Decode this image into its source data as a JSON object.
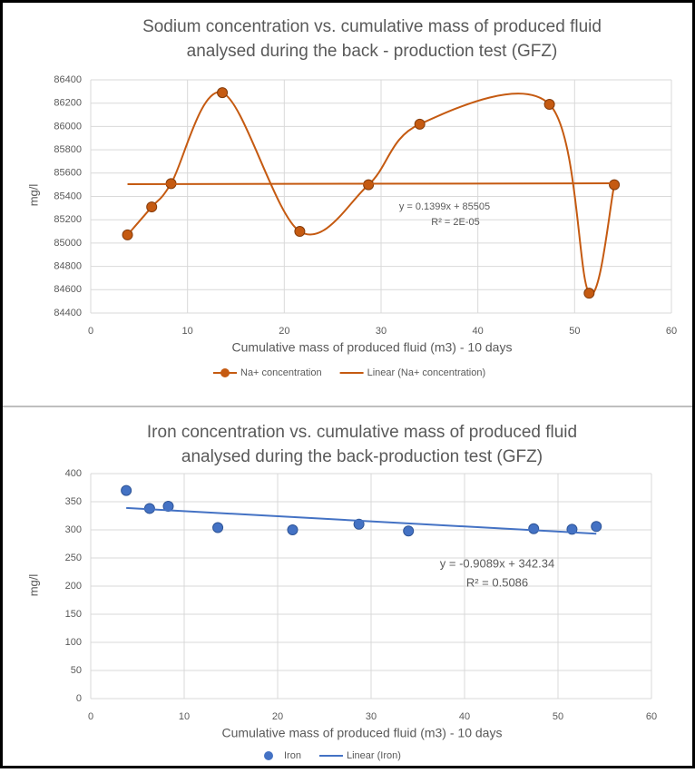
{
  "chart_data": [
    {
      "type": "line",
      "title": [
        "Sodium concentration vs. cumulative mass of produced fluid",
        "analysed during the back - production test (GFZ)"
      ],
      "x_label": "Cumulative mass of produced fluid (m3) - 10 days",
      "y_label": "mg/l",
      "xlim": [
        0,
        60
      ],
      "xticks": [
        0,
        10,
        20,
        30,
        40,
        50,
        60
      ],
      "ylim": [
        84400,
        86400
      ],
      "yticks": [
        84400,
        84600,
        84800,
        85000,
        85200,
        85400,
        85600,
        85800,
        86000,
        86200,
        86400
      ],
      "grid": true,
      "annotations": [
        "y = 0.1399x + 85505",
        "R² = 2E-05"
      ],
      "series": [
        {
          "name": "Na+ concentration",
          "color": "#c55a11",
          "smooth": true,
          "marker": true,
          "x": [
            3.8,
            6.3,
            8.3,
            13.6,
            21.6,
            28.7,
            34,
            47.4,
            51.5,
            54.1
          ],
          "values": [
            85070,
            85310,
            85510,
            86290,
            85100,
            85500,
            86020,
            86190,
            84570,
            85500
          ]
        },
        {
          "name": "Linear (Na+ concentration)",
          "color": "#c55a11",
          "smooth": false,
          "marker": false,
          "x": [
            3.8,
            54.1
          ],
          "values": [
            85505.5,
            85512.6
          ]
        }
      ]
    },
    {
      "type": "scatter",
      "title": [
        "Iron concentration vs. cumulative mass of produced fluid",
        "analysed during the back-production test (GFZ)"
      ],
      "x_label": "Cumulative mass of produced fluid (m3) - 10 days",
      "y_label": "mg/l",
      "xlim": [
        0,
        60
      ],
      "xticks": [
        0,
        10,
        20,
        30,
        40,
        50,
        60
      ],
      "ylim": [
        0,
        400
      ],
      "yticks": [
        0,
        50,
        100,
        150,
        200,
        250,
        300,
        350,
        400
      ],
      "grid": true,
      "annotations": [
        "y = -0.9089x + 342.34",
        "R² = 0.5086"
      ],
      "series": [
        {
          "name": "Iron",
          "color": "#4472c4",
          "smooth": false,
          "marker": true,
          "line": false,
          "x": [
            3.8,
            6.3,
            8.3,
            13.6,
            21.6,
            28.7,
            34,
            47.4,
            51.5,
            54.1
          ],
          "values": [
            370,
            338,
            342,
            304,
            300,
            310,
            298,
            302,
            301,
            306
          ]
        },
        {
          "name": "Linear (Iron)",
          "color": "#4472c4",
          "smooth": false,
          "marker": false,
          "x": [
            3.8,
            54.1
          ],
          "values": [
            338.9,
            293.2
          ]
        }
      ]
    }
  ]
}
